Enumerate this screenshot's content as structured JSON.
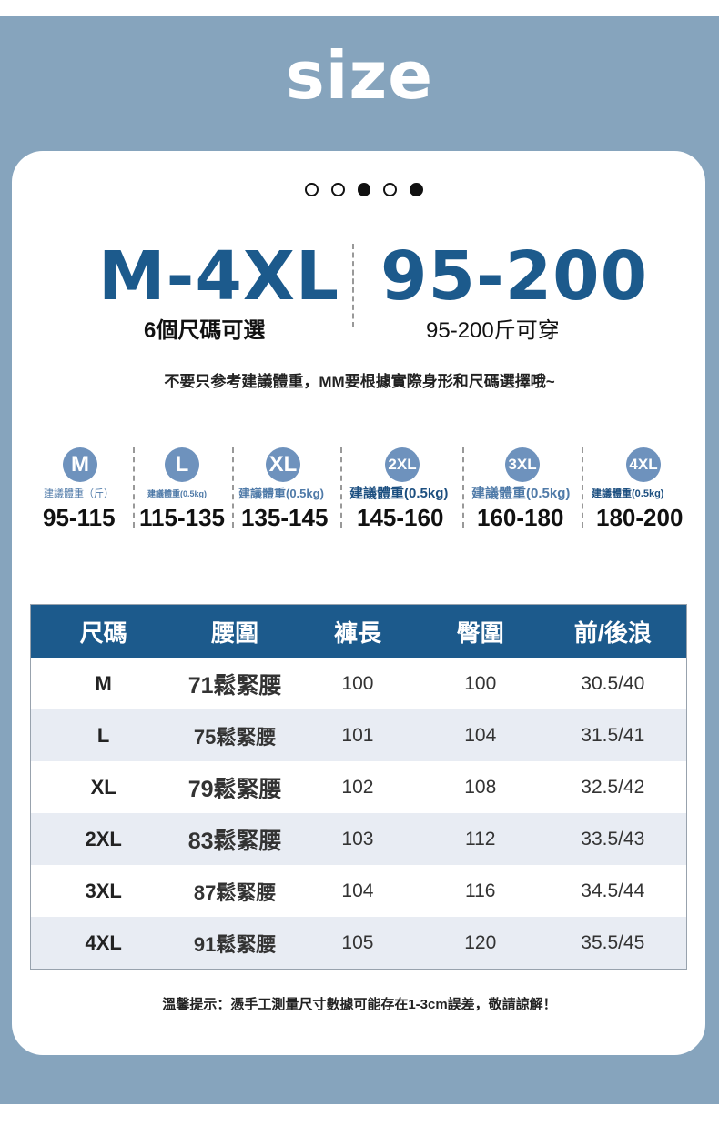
{
  "title": "size",
  "carousel_dots": [
    "empty",
    "empty",
    "filled",
    "empty",
    "filled"
  ],
  "header": {
    "size_range": "M-4XL",
    "size_sub": "6個尺碼可選",
    "weight_range": "95-200",
    "weight_sub": "95-200斤可穿"
  },
  "note": "不要只参考建議體重，MM要根據實際身形和尺碼選擇哦~",
  "sizes": [
    {
      "label": "M",
      "weight_label": "建議體重（斤）",
      "range": "95-115"
    },
    {
      "label": "L",
      "weight_label": "建議體重(0.5kg)",
      "range": "115-135"
    },
    {
      "label": "XL",
      "weight_label": "建議體重(0.5kg)",
      "range": "135-145"
    },
    {
      "label": "2XL",
      "weight_label": "建議體重(0.5kg)",
      "range": "145-160"
    },
    {
      "label": "3XL",
      "weight_label": "建議體重(0.5kg)",
      "range": "160-180"
    },
    {
      "label": "4XL",
      "weight_label": "建議體重(0.5kg)",
      "range": "180-200"
    }
  ],
  "table": {
    "headers": [
      "尺碼",
      "腰圍",
      "褲長",
      "臀圍",
      "前/後浪"
    ],
    "rows": [
      [
        "M",
        "71鬆緊腰",
        "100",
        "100",
        "30.5/40"
      ],
      [
        "L",
        "75鬆緊腰",
        "101",
        "104",
        "31.5/41"
      ],
      [
        "XL",
        "79鬆緊腰",
        "102",
        "108",
        "32.5/42"
      ],
      [
        "2XL",
        "83鬆緊腰",
        "103",
        "112",
        "33.5/43"
      ],
      [
        "3XL",
        "87鬆緊腰",
        "104",
        "116",
        "34.5/44"
      ],
      [
        "4XL",
        "91鬆緊腰",
        "105",
        "120",
        "35.5/45"
      ]
    ]
  },
  "footer": "溫馨提示：憑手工測量尺寸數據可能存在1-3cm誤差，敬請諒解！",
  "colors": {
    "frame": "#86a4bd",
    "accent": "#1c5a8c",
    "size_circle": "#6e92bd",
    "row_alt": "#e8ecf3"
  }
}
